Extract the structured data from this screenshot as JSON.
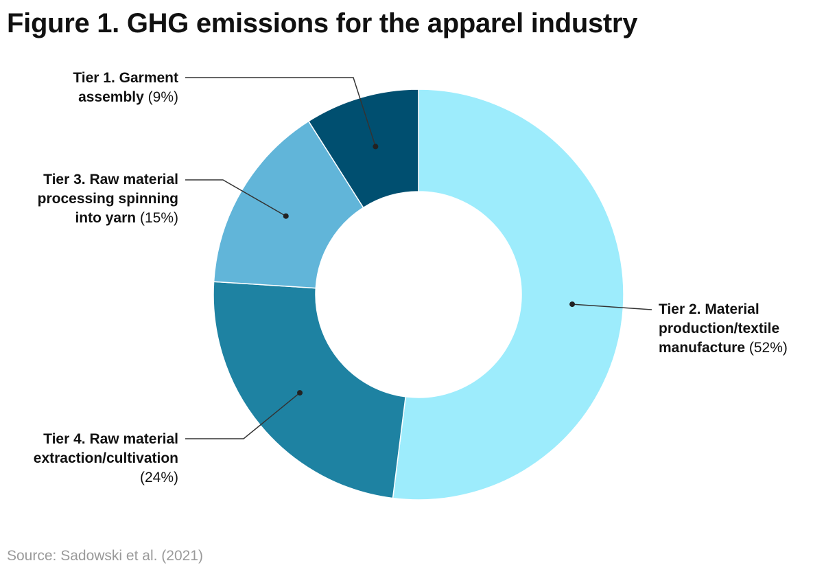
{
  "title": "Figure 1. GHG emissions for the apparel industry",
  "source": "Source: Sadowski et al. (2021)",
  "chart_data": {
    "type": "pie",
    "variant": "donut",
    "title": "Figure 1. GHG emissions for the apparel industry",
    "unit": "%",
    "legend": "none (callout labels)",
    "slices": [
      {
        "name": "Tier 2. Material production/textile manufacture",
        "value": 52,
        "pct_text": "(52%)",
        "color": "#9DECFC"
      },
      {
        "name": "Tier 4. Raw material extraction/cultivation",
        "value": 24,
        "pct_text": "(24%)",
        "color": "#1E82A2"
      },
      {
        "name": "Tier 3. Raw material processing spinning into yarn",
        "value": 15,
        "pct_text": "(15%)",
        "color": "#61B5D9"
      },
      {
        "name": "Tier 1. Garment assembly",
        "value": 9,
        "pct_text": "(9%)",
        "color": "#004F70"
      }
    ]
  }
}
